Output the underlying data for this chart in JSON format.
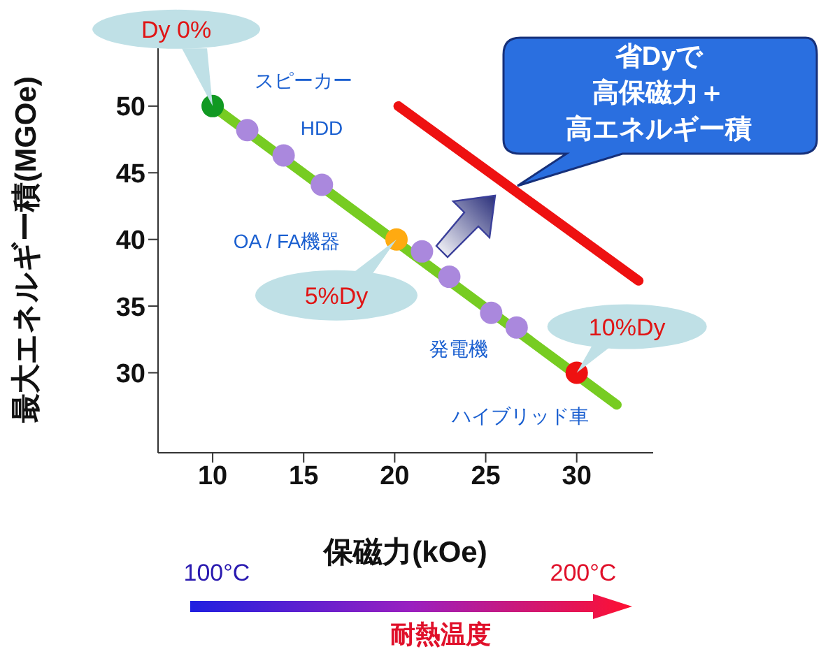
{
  "chart_data": {
    "type": "scatter",
    "xlabel": "保磁力(kOe)",
    "ylabel": "最大エネルギー積(MGOe)",
    "xlim": [
      7,
      34.2
    ],
    "ylim": [
      24,
      54.5
    ],
    "xticks": [
      10,
      15,
      20,
      25,
      30
    ],
    "yticks": [
      30,
      35,
      40,
      45,
      50
    ],
    "grid": false,
    "marker": "circle",
    "series": [
      {
        "type": "line",
        "marker": "none",
        "color": "#77cc22",
        "x": [
          10,
          32.2
        ],
        "values": [
          50,
          27.6
        ]
      },
      {
        "type": "line",
        "marker": "none",
        "color": "#ee1111",
        "x": [
          20.2,
          33.4
        ],
        "values": [
          50,
          36.9
        ]
      },
      {
        "x": [
          10,
          11.9,
          13.9,
          16,
          20.1,
          21.5,
          23,
          25.3,
          26.7,
          30
        ],
        "values": [
          50,
          48.2,
          46.3,
          44.1,
          40,
          39.1,
          37.2,
          34.5,
          33.4,
          30
        ],
        "colors": [
          "#119922",
          "#aa88dd",
          "#aa88dd",
          "#aa88dd",
          "#ffaa11",
          "#aa88dd",
          "#aa88dd",
          "#aa88dd",
          "#aa88dd",
          "#ee1111"
        ]
      }
    ],
    "annotations": [
      {
        "text": "Dy 0%",
        "x": 10,
        "y": 50
      },
      {
        "text": "5%Dy",
        "x": 20.1,
        "y": 40
      },
      {
        "text": "10%Dy",
        "x": 30,
        "y": 30
      },
      "省Dyで",
      "高保磁力＋",
      "高エネルギー積",
      "スピーカー",
      "HDD",
      "OA / FA機器",
      "発電機",
      "ハイブリッド車",
      "100°C",
      "200°C",
      "耐熱温度"
    ]
  }
}
